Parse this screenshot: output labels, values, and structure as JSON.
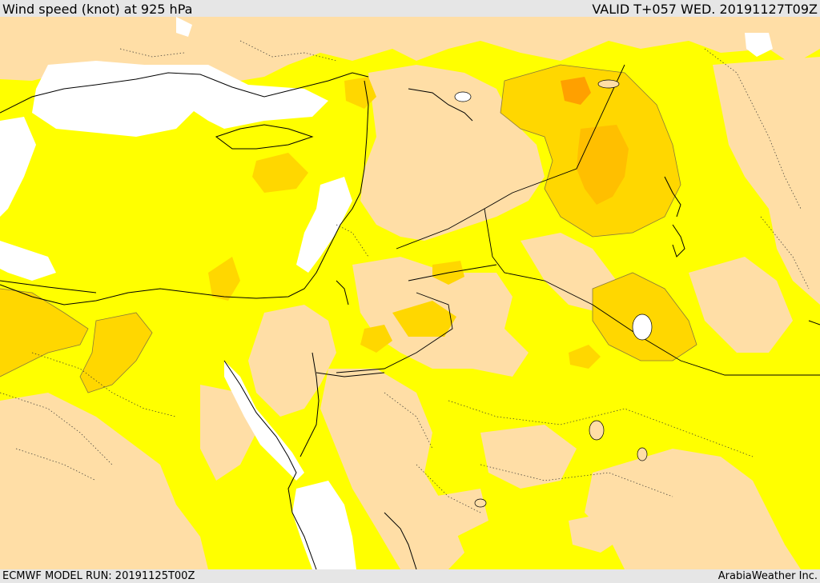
{
  "header": {
    "title": "Wind speed (knot) at 925 hPa",
    "valid_time": "VALID T+057 WED. 20191127T09Z"
  },
  "footer": {
    "model_run": "ECMWF MODEL RUN: 20191125T00Z",
    "credit": "ArabiaWeather Inc."
  },
  "map": {
    "fill_colors": {
      "sea_calm": "#ffffff",
      "light": "#ffdea6",
      "moderate": "#ffff00",
      "strong": "#ffd700",
      "very_strong": "#ffbf00",
      "strongest": "#ffa000"
    },
    "border_color": "#000000"
  }
}
